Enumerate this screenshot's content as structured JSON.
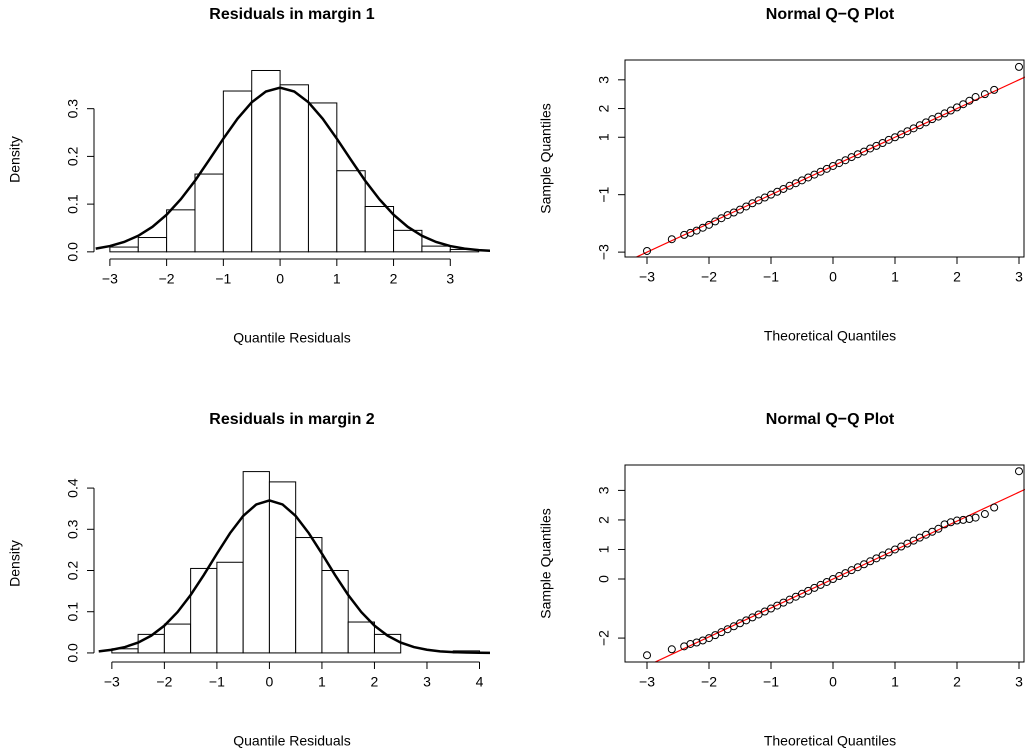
{
  "chart_data": [
    {
      "type": "histogram",
      "title": "Residuals in margin 1",
      "x_label": "Quantile Residuals",
      "y_label": "Density",
      "bins": [
        -3,
        -2.5,
        -2,
        -1.5,
        -1,
        -0.5,
        0,
        0.5,
        1,
        1.5,
        2,
        2.5,
        3,
        3.5
      ],
      "values": [
        0.01,
        0.03,
        0.088,
        0.163,
        0.337,
        0.38,
        0.35,
        0.312,
        0.17,
        0.095,
        0.045,
        0.012,
        0.005
      ],
      "color": "#ffffff",
      "edge_color": "#000000",
      "density_curve": {
        "color": "#000000",
        "x": [
          -3.25,
          -3,
          -2.75,
          -2.5,
          -2.25,
          -2,
          -1.75,
          -1.5,
          -1.25,
          -1,
          -0.75,
          -0.5,
          -0.25,
          0,
          0.25,
          0.5,
          0.75,
          1,
          1.25,
          1.5,
          1.75,
          2,
          2.25,
          2.5,
          2.75,
          3,
          3.25,
          3.5,
          3.75
        ],
        "y": [
          0.0068,
          0.0121,
          0.0207,
          0.0337,
          0.0524,
          0.0778,
          0.1102,
          0.149,
          0.1925,
          0.2372,
          0.279,
          0.3134,
          0.336,
          0.344,
          0.336,
          0.3134,
          0.279,
          0.2372,
          0.1925,
          0.149,
          0.1102,
          0.0778,
          0.0524,
          0.0337,
          0.0207,
          0.0121,
          0.0068,
          0.0036,
          0.0019
        ]
      },
      "xlim": [
        -3.28,
        3.7
      ],
      "ylim": [
        -0.015,
        0.402
      ],
      "xticks": [
        {
          "value": -3,
          "label": "−3"
        },
        {
          "value": -2,
          "label": "−2"
        },
        {
          "value": -1,
          "label": "−1"
        },
        0,
        1,
        2,
        3
      ],
      "yticks": [
        {
          "value": 0,
          "label": "0.0"
        },
        0.1,
        0.2,
        0.3
      ]
    },
    {
      "type": "qq",
      "title": "Normal Q−Q Plot",
      "x_label": "Theoretical Quantiles",
      "y_label": "Sample Quantiles",
      "color": "#000000",
      "x": [
        -3,
        -2.6,
        -2.4,
        -2.3,
        -2.2,
        -2.1,
        -2.0,
        -1.9,
        -1.8,
        -1.7,
        -1.6,
        -1.5,
        -1.4,
        -1.3,
        -1.2,
        -1.1,
        -1.0,
        -0.9,
        -0.8,
        -0.7,
        -0.6,
        -0.5,
        -0.4,
        -0.3,
        -0.2,
        -0.1,
        0,
        0.1,
        0.2,
        0.3,
        0.4,
        0.5,
        0.6,
        0.7,
        0.8,
        0.9,
        1.0,
        1.1,
        1.2,
        1.3,
        1.4,
        1.5,
        1.6,
        1.7,
        1.8,
        1.9,
        2.0,
        2.1,
        2.2,
        2.3,
        2.45,
        2.6,
        3.0
      ],
      "y": [
        -2.96,
        -2.55,
        -2.4,
        -2.33,
        -2.25,
        -2.15,
        -2.05,
        -1.93,
        -1.82,
        -1.71,
        -1.62,
        -1.52,
        -1.41,
        -1.3,
        -1.2,
        -1.1,
        -1.0,
        -0.9,
        -0.8,
        -0.69,
        -0.6,
        -0.5,
        -0.4,
        -0.3,
        -0.2,
        -0.1,
        0.0,
        0.1,
        0.2,
        0.31,
        0.41,
        0.5,
        0.61,
        0.7,
        0.8,
        0.91,
        1.0,
        1.1,
        1.21,
        1.31,
        1.42,
        1.52,
        1.63,
        1.72,
        1.83,
        1.93,
        2.04,
        2.15,
        2.27,
        2.4,
        2.5,
        2.65,
        3.45
      ],
      "reference_line": {
        "intercept": 0,
        "slope": 1.0,
        "color": "#ff0000"
      },
      "xlim": [
        -3.355,
        3.097
      ],
      "ylim": [
        -3.17,
        3.69
      ],
      "xticks": [
        {
          "value": -3,
          "label": "−3"
        },
        {
          "value": -2,
          "label": "−2"
        },
        {
          "value": -1,
          "label": "−1"
        },
        0,
        1,
        2,
        3
      ],
      "yticks": [
        {
          "value": -3,
          "label": "−3"
        },
        {
          "value": -1,
          "label": "−1"
        },
        1,
        2,
        3
      ]
    },
    {
      "type": "histogram",
      "title": "Residuals in margin 2",
      "x_label": "Quantile Residuals",
      "y_label": "Density",
      "bins": [
        -3,
        -2.5,
        -2,
        -1.5,
        -1,
        -0.5,
        0,
        0.5,
        1,
        1.5,
        2,
        2.5,
        3,
        3.5,
        4
      ],
      "values": [
        0.01,
        0.045,
        0.07,
        0.205,
        0.22,
        0.44,
        0.415,
        0.28,
        0.2,
        0.075,
        0.045,
        0,
        0,
        0.005
      ],
      "color": "#ffffff",
      "edge_color": "#000000",
      "density_curve": {
        "color": "#000000",
        "x": [
          -3.25,
          -3,
          -2.75,
          -2.5,
          -2.25,
          -2,
          -1.75,
          -1.5,
          -1.25,
          -1,
          -0.75,
          -0.5,
          -0.25,
          0,
          0.25,
          0.5,
          0.75,
          1,
          1.25,
          1.5,
          1.75,
          2,
          2.25,
          2.5,
          2.75,
          3,
          3.25,
          3.5,
          3.75,
          4,
          4.25
        ],
        "y": [
          0.0039,
          0.0077,
          0.0143,
          0.0251,
          0.0419,
          0.0662,
          0.0991,
          0.1406,
          0.189,
          0.2407,
          0.2906,
          0.3323,
          0.3603,
          0.37,
          0.3603,
          0.3323,
          0.2906,
          0.2407,
          0.189,
          0.1406,
          0.0991,
          0.0662,
          0.0419,
          0.0251,
          0.0143,
          0.0077,
          0.0039,
          0.0019,
          0.0009,
          0.0004,
          0.0002
        ]
      },
      "xlim": [
        -3.34,
        4.2
      ],
      "ylim": [
        -0.022,
        0.456
      ],
      "xticks": [
        {
          "value": -3,
          "label": "−3"
        },
        {
          "value": -2,
          "label": "−2"
        },
        {
          "value": -1,
          "label": "−1"
        },
        0,
        1,
        2,
        3,
        4
      ],
      "yticks": [
        {
          "value": 0,
          "label": "0.0"
        },
        0.1,
        0.2,
        0.3,
        0.4
      ]
    },
    {
      "type": "qq",
      "title": "Normal Q−Q Plot",
      "x_label": "Theoretical Quantiles",
      "y_label": "Sample Quantiles",
      "color": "#000000",
      "x": [
        -3,
        -2.6,
        -2.4,
        -2.3,
        -2.2,
        -2.1,
        -2.0,
        -1.9,
        -1.8,
        -1.7,
        -1.6,
        -1.5,
        -1.4,
        -1.3,
        -1.2,
        -1.1,
        -1.0,
        -0.9,
        -0.8,
        -0.7,
        -0.6,
        -0.5,
        -0.4,
        -0.3,
        -0.2,
        -0.1,
        0,
        0.1,
        0.2,
        0.3,
        0.4,
        0.5,
        0.6,
        0.7,
        0.8,
        0.9,
        1.0,
        1.1,
        1.2,
        1.3,
        1.4,
        1.5,
        1.6,
        1.7,
        1.8,
        1.9,
        2.0,
        2.1,
        2.2,
        2.3,
        2.45,
        2.6,
        3.0
      ],
      "y": [
        -2.58,
        -2.38,
        -2.28,
        -2.2,
        -2.15,
        -2.08,
        -2.0,
        -1.9,
        -1.8,
        -1.7,
        -1.6,
        -1.5,
        -1.4,
        -1.3,
        -1.2,
        -1.1,
        -1.0,
        -0.9,
        -0.8,
        -0.7,
        -0.6,
        -0.5,
        -0.4,
        -0.3,
        -0.2,
        -0.1,
        0.0,
        0.1,
        0.2,
        0.3,
        0.4,
        0.5,
        0.6,
        0.7,
        0.8,
        0.9,
        1.0,
        1.1,
        1.2,
        1.3,
        1.4,
        1.5,
        1.6,
        1.7,
        1.85,
        1.92,
        1.98,
        2.0,
        2.03,
        2.08,
        2.2,
        2.42,
        3.65
      ],
      "reference_line": {
        "intercept": 0,
        "slope": 0.98,
        "color": "#ff0000"
      },
      "xlim": [
        -3.355,
        3.097
      ],
      "ylim": [
        -2.81,
        3.86
      ],
      "xticks": [
        {
          "value": -3,
          "label": "−3"
        },
        {
          "value": -2,
          "label": "−2"
        },
        {
          "value": -1,
          "label": "−1"
        },
        0,
        1,
        2,
        3
      ],
      "yticks": [
        {
          "value": -2,
          "label": "−2"
        },
        0,
        1,
        2,
        3
      ]
    }
  ]
}
